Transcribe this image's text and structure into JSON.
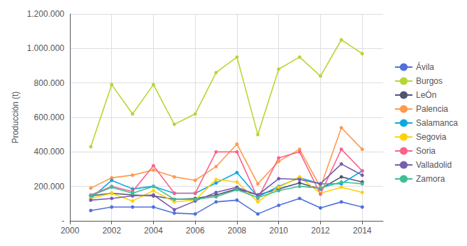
{
  "chart_data": {
    "type": "line",
    "ylabel": "Producción (t)",
    "x": [
      2001,
      2002,
      2003,
      2004,
      2005,
      2006,
      2007,
      2008,
      2009,
      2010,
      2011,
      2012,
      2013,
      2014
    ],
    "series": [
      {
        "name": "Ávila",
        "values": [
          60000,
          80000,
          80000,
          80000,
          45000,
          40000,
          110000,
          120000,
          40000,
          90000,
          130000,
          75000,
          110000,
          80000
        ]
      },
      {
        "name": "Burgos",
        "values": [
          430000,
          790000,
          620000,
          790000,
          560000,
          620000,
          860000,
          950000,
          500000,
          880000,
          950000,
          840000,
          1050000,
          970000
        ]
      },
      {
        "name": "LeÓn",
        "values": [
          145000,
          160000,
          150000,
          145000,
          125000,
          130000,
          150000,
          185000,
          150000,
          185000,
          220000,
          185000,
          255000,
          225000
        ]
      },
      {
        "name": "Palencia",
        "values": [
          190000,
          250000,
          265000,
          295000,
          255000,
          235000,
          315000,
          445000,
          215000,
          345000,
          415000,
          195000,
          540000,
          415000
        ]
      },
      {
        "name": "Salamanca",
        "values": [
          130000,
          235000,
          185000,
          200000,
          160000,
          160000,
          220000,
          280000,
          140000,
          200000,
          250000,
          215000,
          215000,
          290000
        ]
      },
      {
        "name": "Segovia",
        "values": [
          130000,
          160000,
          115000,
          175000,
          110000,
          120000,
          240000,
          225000,
          110000,
          195000,
          255000,
          160000,
          195000,
          165000
        ]
      },
      {
        "name": "Soria",
        "values": [
          150000,
          200000,
          170000,
          320000,
          160000,
          160000,
          400000,
          400000,
          130000,
          365000,
          400000,
          155000,
          415000,
          290000
        ]
      },
      {
        "name": "Valladolid",
        "values": [
          120000,
          130000,
          145000,
          150000,
          65000,
          115000,
          165000,
          195000,
          150000,
          245000,
          240000,
          215000,
          330000,
          265000
        ]
      },
      {
        "name": "Zamora",
        "values": [
          145000,
          195000,
          160000,
          200000,
          125000,
          125000,
          140000,
          180000,
          135000,
          175000,
          200000,
          190000,
          225000,
          215000
        ]
      }
    ],
    "xlim": [
      2000,
      2015
    ],
    "xticks": [
      2000,
      2002,
      2004,
      2006,
      2008,
      2010,
      2012,
      2014
    ],
    "ylim": [
      0,
      1200000
    ],
    "yticks": [
      {
        "value": 0,
        "label": "-"
      },
      {
        "value": 200000,
        "label": "200.000"
      },
      {
        "value": 400000,
        "label": "400.000"
      },
      {
        "value": 600000,
        "label": "600.000"
      },
      {
        "value": 800000,
        "label": "800.000"
      },
      {
        "value": 1000000,
        "label": "1.000.000"
      },
      {
        "value": 1200000,
        "label": "1.200.000"
      }
    ],
    "grid": true,
    "legend": "right",
    "marker": "circle"
  }
}
